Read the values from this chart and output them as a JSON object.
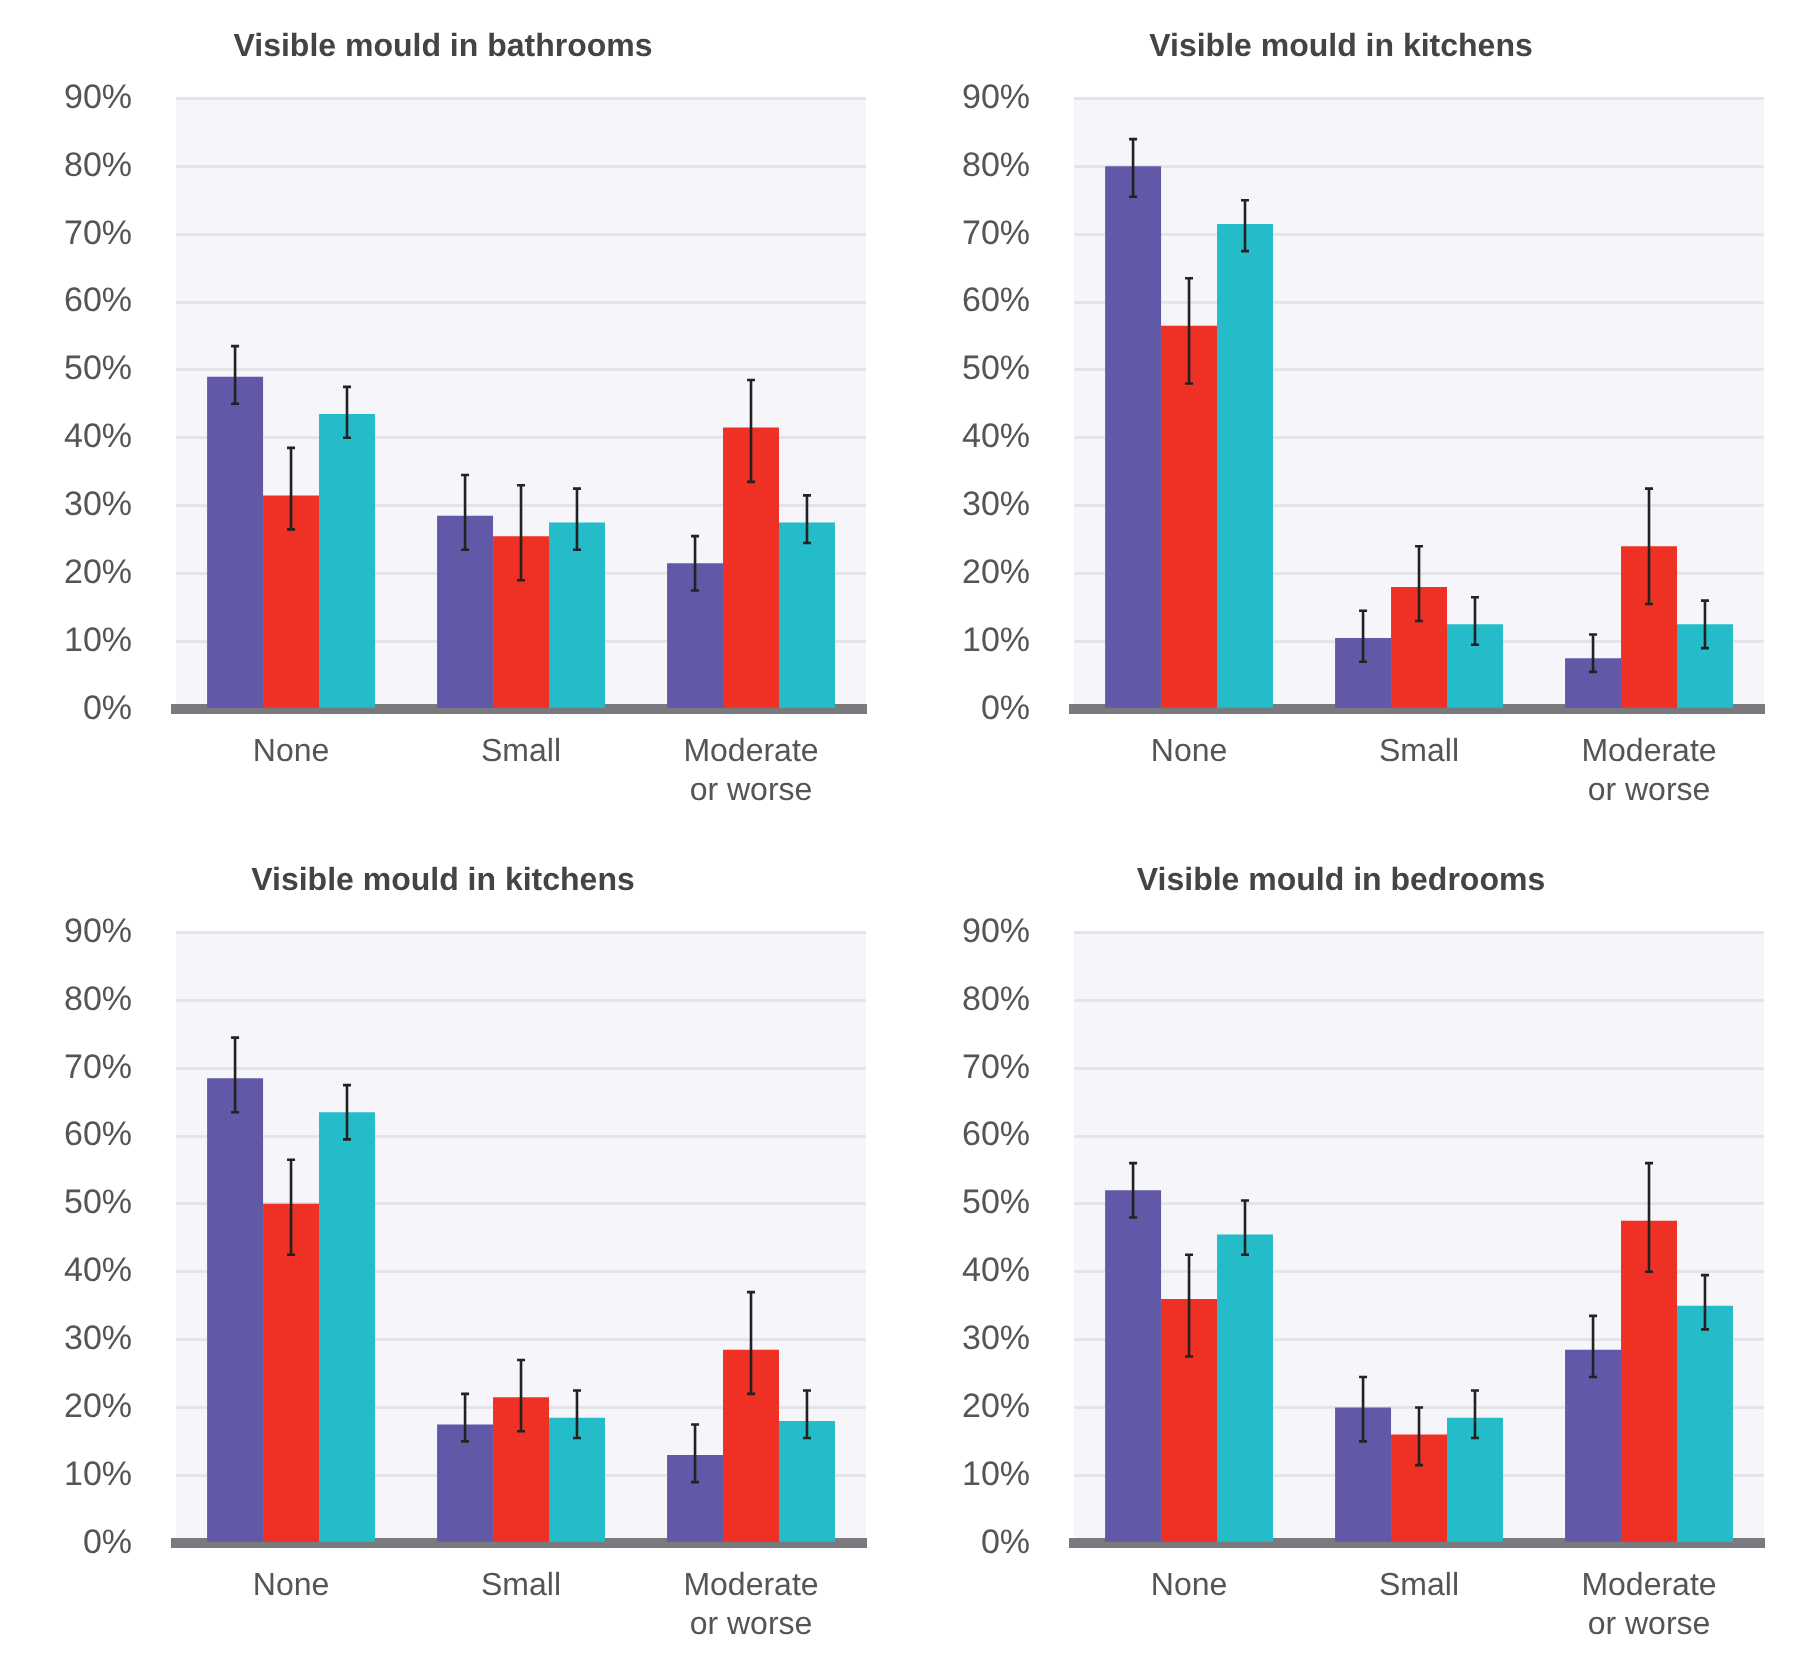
{
  "chart_data": [
    {
      "type": "bar",
      "title": "Visible mould in bathrooms",
      "categories": [
        "None",
        "Small",
        "Moderate or worse"
      ],
      "ylim": [
        0,
        90
      ],
      "yticks": [
        {
          "value": 0,
          "label": "0%"
        },
        {
          "value": 10,
          "label": "10%"
        },
        {
          "value": 20,
          "label": "20%"
        },
        {
          "value": 30,
          "label": "30%"
        },
        {
          "value": 40,
          "label": "40%"
        },
        {
          "value": 50,
          "label": "50%"
        },
        {
          "value": 60,
          "label": "60%"
        },
        {
          "value": 70,
          "label": "70%"
        },
        {
          "value": 80,
          "label": "80%"
        },
        {
          "value": 90,
          "label": "90%"
        }
      ],
      "grid": "y",
      "series": [
        {
          "color": "#6159a8",
          "values": [
            49,
            28.5,
            21.5
          ],
          "errors": [
            [
              45,
              53.5
            ],
            [
              23.5,
              34.5
            ],
            [
              17.5,
              25.5
            ]
          ]
        },
        {
          "color": "#ee3124",
          "values": [
            31.5,
            25.5,
            41.5
          ],
          "errors": [
            [
              26.5,
              38.5
            ],
            [
              19,
              33
            ],
            [
              33.5,
              48.5
            ]
          ]
        },
        {
          "color": "#25bcc9",
          "values": [
            43.5,
            27.5,
            27.5
          ],
          "errors": [
            [
              40,
              47.5
            ],
            [
              23.5,
              32.5
            ],
            [
              24.5,
              31.5
            ]
          ]
        }
      ]
    },
    {
      "type": "bar",
      "title": "Visible mould in kitchens",
      "categories": [
        "None",
        "Small",
        "Moderate or worse"
      ],
      "ylim": [
        0,
        90
      ],
      "yticks": [
        {
          "value": 0,
          "label": "0%"
        },
        {
          "value": 10,
          "label": "10%"
        },
        {
          "value": 20,
          "label": "20%"
        },
        {
          "value": 30,
          "label": "30%"
        },
        {
          "value": 40,
          "label": "40%"
        },
        {
          "value": 50,
          "label": "50%"
        },
        {
          "value": 60,
          "label": "60%"
        },
        {
          "value": 70,
          "label": "70%"
        },
        {
          "value": 80,
          "label": "80%"
        },
        {
          "value": 90,
          "label": "90%"
        }
      ],
      "grid": "y",
      "series": [
        {
          "color": "#6159a8",
          "values": [
            80,
            10.5,
            7.5
          ],
          "errors": [
            [
              75.5,
              84
            ],
            [
              7,
              14.5
            ],
            [
              5.5,
              11
            ]
          ]
        },
        {
          "color": "#ee3124",
          "values": [
            56.5,
            18,
            24
          ],
          "errors": [
            [
              48,
              63.5
            ],
            [
              13,
              24
            ],
            [
              15.5,
              32.5
            ]
          ]
        },
        {
          "color": "#25bcc9",
          "values": [
            71.5,
            12.5,
            12.5
          ],
          "errors": [
            [
              67.5,
              75
            ],
            [
              9.5,
              16.5
            ],
            [
              9,
              16
            ]
          ]
        }
      ]
    },
    {
      "type": "bar",
      "title": "Visible mould in kitchens",
      "categories": [
        "None",
        "Small",
        "Moderate or worse"
      ],
      "ylim": [
        0,
        90
      ],
      "yticks": [
        {
          "value": 0,
          "label": "0%"
        },
        {
          "value": 10,
          "label": "10%"
        },
        {
          "value": 20,
          "label": "20%"
        },
        {
          "value": 30,
          "label": "30%"
        },
        {
          "value": 40,
          "label": "40%"
        },
        {
          "value": 50,
          "label": "50%"
        },
        {
          "value": 60,
          "label": "60%"
        },
        {
          "value": 70,
          "label": "70%"
        },
        {
          "value": 80,
          "label": "80%"
        },
        {
          "value": 90,
          "label": "90%"
        }
      ],
      "grid": "y",
      "series": [
        {
          "color": "#6159a8",
          "values": [
            68.5,
            17.5,
            13
          ],
          "errors": [
            [
              63.5,
              74.5
            ],
            [
              15,
              22
            ],
            [
              9,
              17.5
            ]
          ]
        },
        {
          "color": "#ee3124",
          "values": [
            50,
            21.5,
            28.5
          ],
          "errors": [
            [
              42.5,
              56.5
            ],
            [
              16.5,
              27
            ],
            [
              22,
              37
            ]
          ]
        },
        {
          "color": "#25bcc9",
          "values": [
            63.5,
            18.5,
            18
          ],
          "errors": [
            [
              59.5,
              67.5
            ],
            [
              15.5,
              22.5
            ],
            [
              15.5,
              22.5
            ]
          ]
        }
      ]
    },
    {
      "type": "bar",
      "title": "Visible mould in bedrooms",
      "categories": [
        "None",
        "Small",
        "Moderate or worse"
      ],
      "ylim": [
        0,
        90
      ],
      "yticks": [
        {
          "value": 0,
          "label": "0%"
        },
        {
          "value": 10,
          "label": "10%"
        },
        {
          "value": 20,
          "label": "20%"
        },
        {
          "value": 30,
          "label": "30%"
        },
        {
          "value": 40,
          "label": "40%"
        },
        {
          "value": 50,
          "label": "50%"
        },
        {
          "value": 60,
          "label": "60%"
        },
        {
          "value": 70,
          "label": "70%"
        },
        {
          "value": 80,
          "label": "80%"
        },
        {
          "value": 90,
          "label": "90%"
        }
      ],
      "grid": "y",
      "series": [
        {
          "color": "#6159a8",
          "values": [
            52,
            20,
            28.5
          ],
          "errors": [
            [
              48,
              56
            ],
            [
              15,
              24.5
            ],
            [
              24.5,
              33.5
            ]
          ]
        },
        {
          "color": "#ee3124",
          "values": [
            36,
            16,
            47.5
          ],
          "errors": [
            [
              27.5,
              42.5
            ],
            [
              11.5,
              20
            ],
            [
              40,
              56
            ]
          ]
        },
        {
          "color": "#25bcc9",
          "values": [
            45.5,
            18.5,
            35
          ],
          "errors": [
            [
              42.5,
              50.5
            ],
            [
              15.5,
              22.5
            ],
            [
              31.5,
              39.5
            ]
          ]
        }
      ]
    }
  ]
}
